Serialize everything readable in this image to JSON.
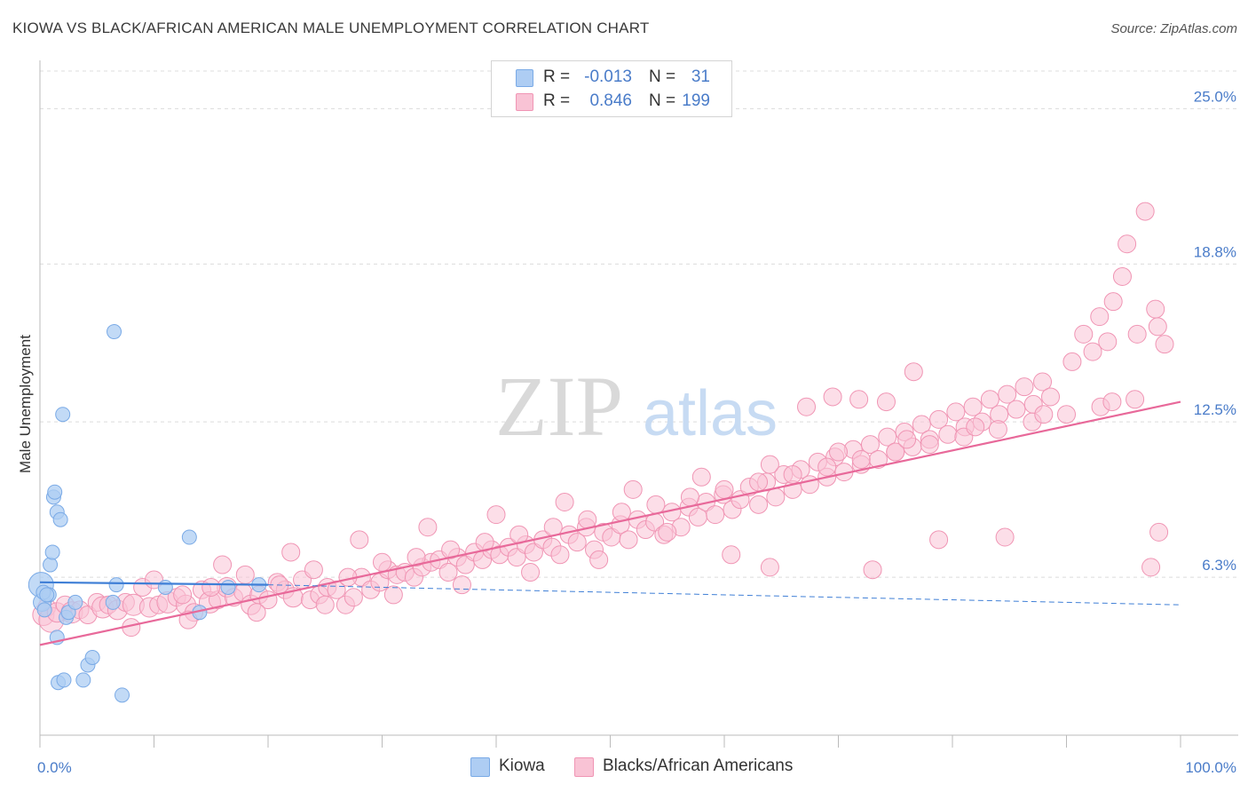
{
  "title": "KIOWA VS BLACK/AFRICAN AMERICAN MALE UNEMPLOYMENT CORRELATION CHART",
  "source": "Source: ZipAtlas.com",
  "watermark": {
    "zip": "ZIP",
    "atlas": "atlas"
  },
  "legend_top": {
    "rows": [
      {
        "r_label": "R =",
        "r_value": "-0.013",
        "n_label": "N =",
        "n_value": "31",
        "color": "#aecdf3",
        "border": "#7aaae6"
      },
      {
        "r_label": "R =",
        "r_value": "0.846",
        "n_label": "N =",
        "n_value": "199",
        "color": "#f9c3d5",
        "border": "#f095b4"
      }
    ]
  },
  "legend_bottom": {
    "items": [
      {
        "label": "Kiowa",
        "color": "#aecdf3",
        "border": "#7aaae6"
      },
      {
        "label": "Blacks/African Americans",
        "color": "#f9c3d5",
        "border": "#f095b4"
      }
    ]
  },
  "chart_data": {
    "type": "scatter",
    "title": "KIOWA VS BLACK/AFRICAN AMERICAN MALE UNEMPLOYMENT CORRELATION CHART",
    "xlabel": "",
    "ylabel": "Male Unemployment",
    "xlim": [
      0,
      100
    ],
    "ylim": [
      0,
      26.5
    ],
    "x_tick_labels": [
      {
        "value": 0,
        "label": "0.0%"
      },
      {
        "value": 100,
        "label": "100.0%"
      }
    ],
    "y_tick_labels": [
      {
        "value": 6.3,
        "label": "6.3%"
      },
      {
        "value": 12.5,
        "label": "12.5%"
      },
      {
        "value": 18.8,
        "label": "18.8%"
      },
      {
        "value": 25.0,
        "label": "25.0%"
      }
    ],
    "x_minor_ticks": [
      0,
      10,
      20,
      30,
      40,
      50,
      60,
      70,
      80,
      90,
      100
    ],
    "grid": "horizontal dashed",
    "legend_position": "top-center",
    "series": [
      {
        "name": "Kiowa",
        "color": "#7aaae6",
        "fill": "#aecdf3",
        "r": -0.013,
        "n": 31,
        "trend": {
          "x": [
            0,
            20
          ],
          "y": [
            6.1,
            6.0
          ],
          "dashed_to": [
            100,
            5.2
          ]
        },
        "points": [
          [
            0.1,
            6.0,
            14
          ],
          [
            0.2,
            5.3,
            10
          ],
          [
            0.4,
            5.0,
            8
          ],
          [
            0.8,
            5.6,
            8
          ],
          [
            0.9,
            6.8,
            8
          ],
          [
            1.1,
            7.3,
            8
          ],
          [
            1.2,
            9.5,
            8
          ],
          [
            1.3,
            9.7,
            8
          ],
          [
            1.5,
            8.9,
            8
          ],
          [
            1.5,
            3.9,
            8
          ],
          [
            1.6,
            2.1,
            8
          ],
          [
            1.8,
            8.6,
            8
          ],
          [
            2.0,
            12.8,
            8
          ],
          [
            2.1,
            2.2,
            8
          ],
          [
            2.3,
            4.7,
            8
          ],
          [
            2.5,
            4.9,
            8
          ],
          [
            3.1,
            5.3,
            8
          ],
          [
            3.8,
            2.2,
            8
          ],
          [
            4.2,
            2.8,
            8
          ],
          [
            4.6,
            3.1,
            8
          ],
          [
            6.4,
            5.3,
            8
          ],
          [
            6.5,
            16.1,
            8
          ],
          [
            6.7,
            6.0,
            8
          ],
          [
            7.2,
            1.6,
            8
          ],
          [
            11.0,
            5.9,
            8
          ],
          [
            13.1,
            7.9,
            8
          ],
          [
            14.0,
            4.9,
            8
          ],
          [
            16.5,
            5.9,
            8
          ],
          [
            19.2,
            6.0,
            8
          ],
          [
            0.3,
            5.7,
            8
          ],
          [
            0.6,
            5.6,
            8
          ]
        ]
      },
      {
        "name": "Blacks/African Americans",
        "color": "#f095b4",
        "fill": "#f9c3d5",
        "r": 0.846,
        "n": 199,
        "trend": {
          "x": [
            0,
            100
          ],
          "y": [
            3.6,
            13.3
          ]
        },
        "points": [
          [
            0.3,
            4.8,
            12
          ],
          [
            0.6,
            5.1,
            10
          ],
          [
            1.0,
            4.6,
            14
          ],
          [
            1.5,
            4.9,
            11
          ],
          [
            2.2,
            5.2,
            10
          ],
          [
            2.8,
            4.9,
            12
          ],
          [
            3.5,
            5.0,
            10
          ],
          [
            4.2,
            4.8,
            10
          ],
          [
            5.0,
            5.3,
            10
          ],
          [
            5.5,
            5.1,
            12
          ],
          [
            6.0,
            5.2,
            10
          ],
          [
            6.8,
            5.0,
            11
          ],
          [
            7.5,
            5.3,
            10
          ],
          [
            8.2,
            5.2,
            12
          ],
          [
            9.0,
            5.9,
            10
          ],
          [
            9.6,
            5.1,
            11
          ],
          [
            10.4,
            5.2,
            10
          ],
          [
            11.2,
            5.3,
            12
          ],
          [
            12.0,
            5.5,
            10
          ],
          [
            12.8,
            5.2,
            11
          ],
          [
            13.5,
            4.9,
            10
          ],
          [
            14.2,
            5.8,
            10
          ],
          [
            14.9,
            5.3,
            12
          ],
          [
            15.6,
            5.4,
            10
          ],
          [
            16.4,
            5.9,
            11
          ],
          [
            17.0,
            5.5,
            10
          ],
          [
            17.8,
            5.7,
            10
          ],
          [
            18.5,
            5.2,
            11
          ],
          [
            19.2,
            5.6,
            10
          ],
          [
            20.0,
            5.4,
            10
          ],
          [
            20.8,
            6.1,
            10
          ],
          [
            21.5,
            5.8,
            10
          ],
          [
            22.2,
            5.5,
            11
          ],
          [
            23.0,
            6.2,
            10
          ],
          [
            23.7,
            5.4,
            10
          ],
          [
            24.5,
            5.6,
            10
          ],
          [
            25.2,
            5.9,
            10
          ],
          [
            26.0,
            5.8,
            10
          ],
          [
            26.8,
            5.2,
            10
          ],
          [
            27.5,
            5.5,
            10
          ],
          [
            28.2,
            6.3,
            10
          ],
          [
            29.0,
            5.8,
            10
          ],
          [
            29.8,
            6.1,
            10
          ],
          [
            30.5,
            6.6,
            10
          ],
          [
            31.3,
            6.4,
            10
          ],
          [
            32.0,
            6.5,
            10
          ],
          [
            32.8,
            6.3,
            10
          ],
          [
            33.5,
            6.7,
            10
          ],
          [
            34.3,
            6.9,
            10
          ],
          [
            35.0,
            7.0,
            10
          ],
          [
            35.8,
            6.5,
            10
          ],
          [
            36.6,
            7.1,
            10
          ],
          [
            37.3,
            6.8,
            10
          ],
          [
            38.1,
            7.3,
            10
          ],
          [
            38.8,
            7.0,
            10
          ],
          [
            39.6,
            7.4,
            10
          ],
          [
            40.3,
            7.2,
            10
          ],
          [
            41.1,
            7.5,
            10
          ],
          [
            41.8,
            7.1,
            10
          ],
          [
            42.6,
            7.6,
            10
          ],
          [
            43.3,
            7.3,
            10
          ],
          [
            44.1,
            7.8,
            10
          ],
          [
            44.9,
            7.5,
            10
          ],
          [
            45.6,
            7.2,
            10
          ],
          [
            46.4,
            8.0,
            10
          ],
          [
            47.1,
            7.7,
            10
          ],
          [
            47.9,
            8.3,
            10
          ],
          [
            48.6,
            7.4,
            10
          ],
          [
            49.4,
            8.1,
            10
          ],
          [
            50.1,
            7.9,
            10
          ],
          [
            50.9,
            8.4,
            10
          ],
          [
            51.6,
            7.8,
            10
          ],
          [
            52.4,
            8.6,
            10
          ],
          [
            53.1,
            8.2,
            10
          ],
          [
            53.9,
            8.5,
            10
          ],
          [
            54.7,
            8.0,
            10
          ],
          [
            55.4,
            8.9,
            10
          ],
          [
            56.2,
            8.3,
            10
          ],
          [
            56.9,
            9.1,
            10
          ],
          [
            57.7,
            8.7,
            10
          ],
          [
            58.4,
            9.3,
            10
          ],
          [
            59.2,
            8.8,
            10
          ],
          [
            59.9,
            9.6,
            10
          ],
          [
            60.7,
            9.0,
            10
          ],
          [
            61.4,
            9.4,
            10
          ],
          [
            62.2,
            9.9,
            10
          ],
          [
            63.0,
            9.2,
            10
          ],
          [
            63.7,
            10.1,
            10
          ],
          [
            64.5,
            9.5,
            10
          ],
          [
            65.2,
            10.4,
            10
          ],
          [
            66.0,
            9.8,
            10
          ],
          [
            66.7,
            10.6,
            10
          ],
          [
            67.5,
            10.0,
            10
          ],
          [
            68.2,
            10.9,
            10
          ],
          [
            69.0,
            10.3,
            10
          ],
          [
            69.7,
            11.1,
            10
          ],
          [
            70.5,
            10.5,
            10
          ],
          [
            71.3,
            11.4,
            10
          ],
          [
            72.0,
            10.8,
            10
          ],
          [
            72.8,
            11.6,
            10
          ],
          [
            73.5,
            11.0,
            10
          ],
          [
            74.3,
            11.9,
            10
          ],
          [
            75.0,
            11.3,
            10
          ],
          [
            75.8,
            12.1,
            10
          ],
          [
            76.5,
            11.5,
            10
          ],
          [
            77.3,
            12.4,
            10
          ],
          [
            78.0,
            11.8,
            10
          ],
          [
            78.8,
            12.6,
            10
          ],
          [
            79.6,
            12.0,
            10
          ],
          [
            80.3,
            12.9,
            10
          ],
          [
            81.1,
            12.3,
            10
          ],
          [
            81.8,
            13.1,
            10
          ],
          [
            82.6,
            12.5,
            10
          ],
          [
            83.3,
            13.4,
            10
          ],
          [
            84.1,
            12.8,
            10
          ],
          [
            84.8,
            13.6,
            10
          ],
          [
            85.6,
            13.0,
            10
          ],
          [
            86.3,
            13.9,
            10
          ],
          [
            87.1,
            13.2,
            10
          ],
          [
            87.9,
            14.1,
            10
          ],
          [
            88.6,
            13.5,
            10
          ],
          [
            10.0,
            6.2,
            10
          ],
          [
            12.5,
            5.6,
            10
          ],
          [
            15.0,
            5.9,
            10
          ],
          [
            18.0,
            6.4,
            10
          ],
          [
            21.0,
            6.0,
            10
          ],
          [
            24.0,
            6.6,
            10
          ],
          [
            27.0,
            6.3,
            10
          ],
          [
            30.0,
            6.9,
            10
          ],
          [
            33.0,
            7.1,
            10
          ],
          [
            36.0,
            7.4,
            10
          ],
          [
            39.0,
            7.7,
            10
          ],
          [
            42.0,
            8.0,
            10
          ],
          [
            45.0,
            8.3,
            10
          ],
          [
            48.0,
            8.6,
            10
          ],
          [
            51.0,
            8.9,
            10
          ],
          [
            54.0,
            9.2,
            10
          ],
          [
            57.0,
            9.5,
            10
          ],
          [
            60.0,
            9.8,
            10
          ],
          [
            63.0,
            10.1,
            10
          ],
          [
            66.0,
            10.4,
            10
          ],
          [
            69.0,
            10.7,
            10
          ],
          [
            72.0,
            11.0,
            10
          ],
          [
            75.0,
            11.3,
            10
          ],
          [
            78.0,
            11.6,
            10
          ],
          [
            81.0,
            11.9,
            10
          ],
          [
            84.0,
            12.2,
            10
          ],
          [
            87.0,
            12.5,
            10
          ],
          [
            90.0,
            12.8,
            10
          ],
          [
            93.0,
            13.1,
            10
          ],
          [
            96.0,
            13.4,
            10
          ],
          [
            16.0,
            6.8,
            10
          ],
          [
            22.0,
            7.3,
            10
          ],
          [
            28.0,
            7.8,
            10
          ],
          [
            34.0,
            8.3,
            10
          ],
          [
            40.0,
            8.8,
            10
          ],
          [
            46.0,
            9.3,
            10
          ],
          [
            52.0,
            9.8,
            10
          ],
          [
            58.0,
            10.3,
            10
          ],
          [
            64.0,
            10.8,
            10
          ],
          [
            70.0,
            11.3,
            10
          ],
          [
            76.0,
            11.8,
            10
          ],
          [
            82.0,
            12.3,
            10
          ],
          [
            88.0,
            12.8,
            10
          ],
          [
            94.0,
            13.3,
            10
          ],
          [
            90.5,
            14.9,
            10
          ],
          [
            91.5,
            16.0,
            10
          ],
          [
            92.3,
            15.3,
            10
          ],
          [
            92.9,
            16.7,
            10
          ],
          [
            93.6,
            15.7,
            10
          ],
          [
            94.1,
            17.3,
            10
          ],
          [
            94.9,
            18.3,
            10
          ],
          [
            95.3,
            19.6,
            10
          ],
          [
            96.2,
            16.0,
            10
          ],
          [
            96.9,
            20.9,
            10
          ],
          [
            97.8,
            17.0,
            10
          ],
          [
            98.0,
            16.3,
            10
          ],
          [
            98.6,
            15.6,
            10
          ],
          [
            97.4,
            6.7,
            10
          ],
          [
            98.1,
            8.1,
            10
          ],
          [
            76.6,
            14.5,
            10
          ],
          [
            74.2,
            13.3,
            10
          ],
          [
            71.8,
            13.4,
            10
          ],
          [
            69.5,
            13.5,
            10
          ],
          [
            67.2,
            13.1,
            10
          ],
          [
            73.0,
            6.6,
            10
          ],
          [
            78.8,
            7.8,
            10
          ],
          [
            84.6,
            7.9,
            10
          ],
          [
            64.0,
            6.7,
            10
          ],
          [
            60.6,
            7.2,
            10
          ],
          [
            55.0,
            8.1,
            10
          ],
          [
            49.0,
            7.0,
            10
          ],
          [
            43.0,
            6.5,
            10
          ],
          [
            37.0,
            6.0,
            10
          ],
          [
            31.0,
            5.6,
            10
          ],
          [
            25.0,
            5.2,
            10
          ],
          [
            19.0,
            4.9,
            10
          ],
          [
            13.0,
            4.6,
            10
          ],
          [
            8.0,
            4.3,
            10
          ]
        ]
      }
    ]
  }
}
